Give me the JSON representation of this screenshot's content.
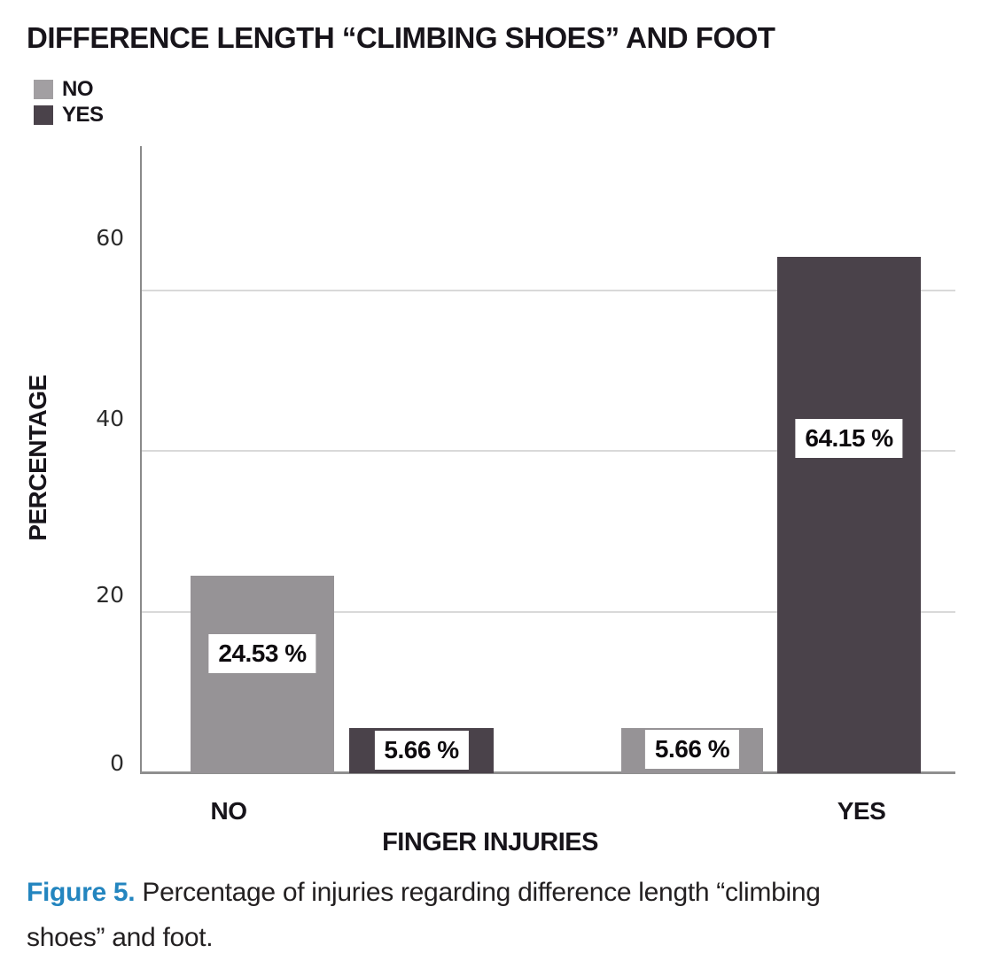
{
  "title": {
    "text": "DIFFERENCE LENGTH “CLIMBING SHOES” AND FOOT"
  },
  "legend": {
    "items": [
      {
        "label": "NO",
        "color": "#a29fa2"
      },
      {
        "label": "YES",
        "color": "#4a424a"
      }
    ]
  },
  "chart_data": {
    "type": "bar",
    "title": "DIFFERENCE LENGTH “CLIMBING SHOES” AND FOOT",
    "categories": [
      "NO",
      "YES"
    ],
    "series": [
      {
        "name": "NO",
        "color": "#969396",
        "values": [
          24.53,
          5.66
        ]
      },
      {
        "name": "YES",
        "color": "#4a424a",
        "values": [
          5.66,
          64.15
        ]
      }
    ],
    "value_labels": [
      "24.53 %",
      "5.66 %",
      "5.66 %",
      "64.15 %"
    ],
    "xlabel": "FINGER INJURIES",
    "ylabel": "PERCENTAGE",
    "yticks": [
      0,
      20,
      40,
      60
    ],
    "ylim": [
      0,
      78
    ],
    "grid": "horizontal-at-yticks",
    "legend_position": "top-left",
    "value_label_style": "white box with black bold text placed inside bar"
  },
  "caption": {
    "prefix": "Figure 5.",
    "line1": "Percentage of injuries regarding difference length “climbing",
    "line2": "shoes” and foot."
  }
}
